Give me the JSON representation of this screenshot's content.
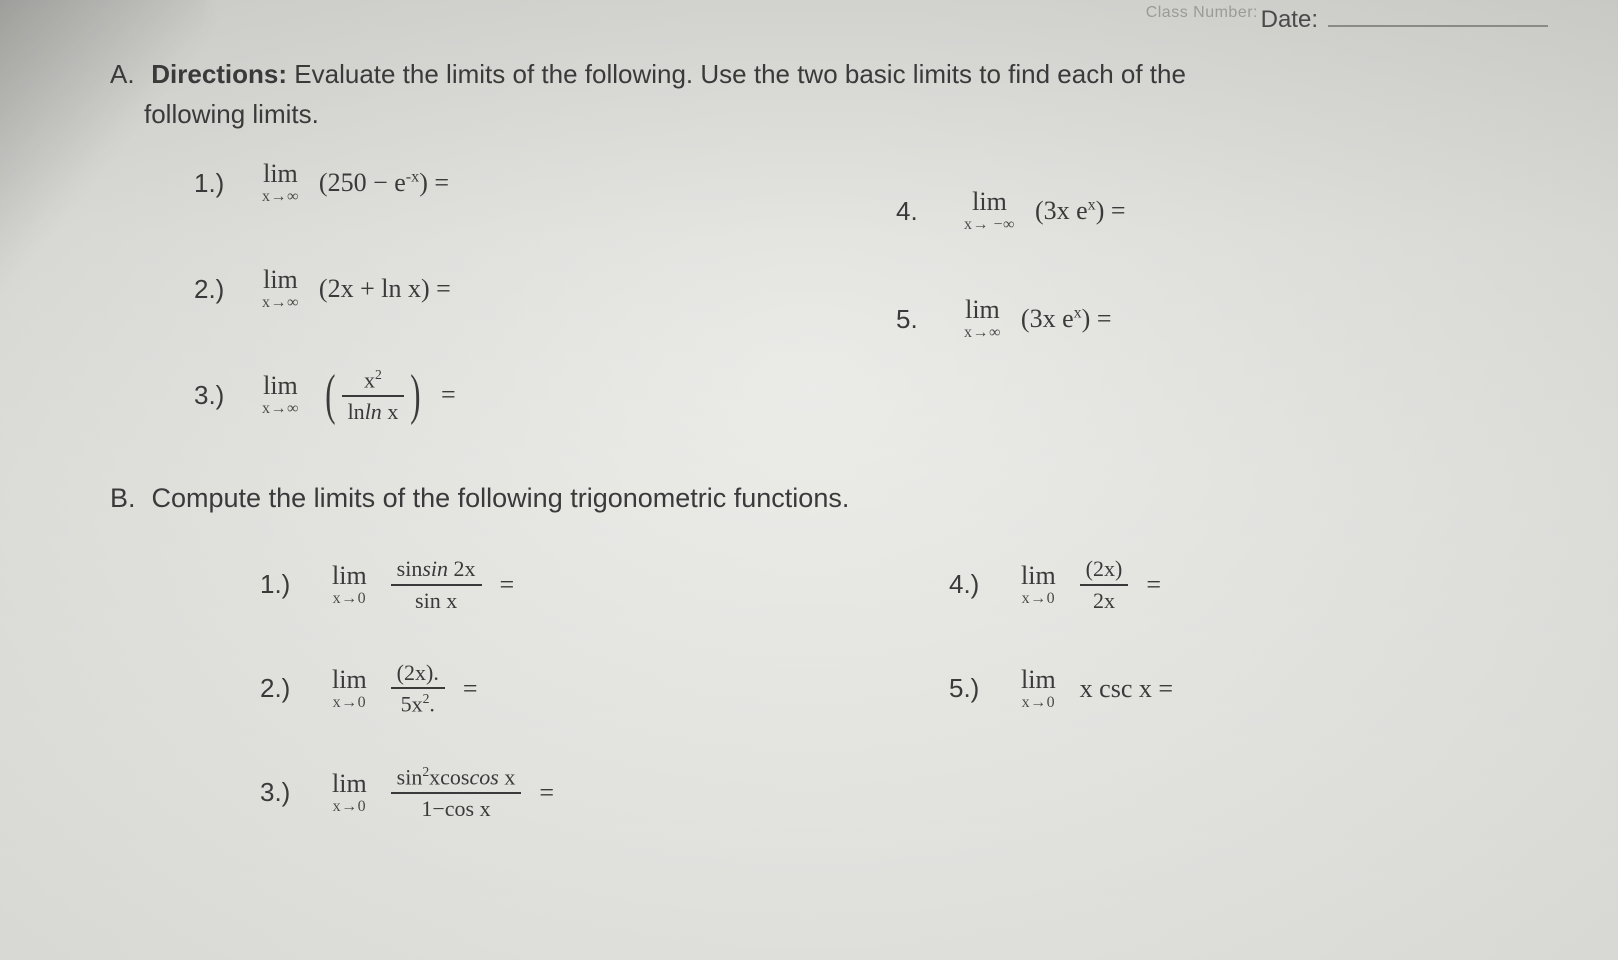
{
  "meta": {
    "class_number_ghost": "Class Number:",
    "date_label": "Date:"
  },
  "colors": {
    "text": "#3a3a3a",
    "muted": "#4a4a4a",
    "rule": "#8a8a86",
    "bg_top": "#d3d3cf",
    "bg_bottom": "#eaeae6"
  },
  "typography": {
    "body_family": "Arial, Helvetica, sans-serif",
    "math_family": "Georgia, 'Times New Roman', serif",
    "heading_size_pt": 20,
    "body_size_pt": 20,
    "subscript_scale": 0.62
  },
  "sectionA": {
    "letter": "A.",
    "bold_lead": "Directions:",
    "text_line1": " Evaluate the limits of the following. Use the two basic limits to find each of the",
    "text_line2": "following limits.",
    "left": [
      {
        "n": "1.)",
        "lim_top": "lim",
        "lim_bot": "x→∞",
        "expr_html": "(250 − e<sup>-x</sup>) ="
      },
      {
        "n": "2.)",
        "lim_top": "lim",
        "lim_bot": "x→∞",
        "expr_html": "(2x + ln x) ="
      },
      {
        "n": "3.)",
        "lim_top": "lim",
        "lim_bot": "x→∞",
        "paren_frac": {
          "num": "x<sup>2</sup>",
          "den": "ln<i>ln</i> x"
        },
        "tail": "="
      }
    ],
    "right": [
      {
        "n": "4.",
        "lim_top": "lim",
        "lim_bot": "x→ −∞",
        "expr_html": "(3x e<sup>x</sup>) ="
      },
      {
        "n": "5.",
        "lim_top": "lim",
        "lim_bot": "x→∞",
        "expr_html": "(3x e<sup>x</sup>) ="
      }
    ]
  },
  "sectionB": {
    "letter": "B.",
    "text": "Compute the limits of the following trigonometric functions.",
    "left": [
      {
        "n": "1.)",
        "lim_top": "lim",
        "lim_bot": "x→0",
        "frac": {
          "num": "sin<i>sin</i> 2x",
          "den": "sin x"
        },
        "tail": " ="
      },
      {
        "n": "2.)",
        "lim_top": "lim",
        "lim_bot": "x→0",
        "frac": {
          "num": "(2x).",
          "den": "5x<sup>2</sup>."
        },
        "tail": " ="
      },
      {
        "n": "3.)",
        "lim_top": "lim",
        "lim_bot": "x→0",
        "frac": {
          "num": "sin<sup>2</sup>xcos<i>cos</i> x",
          "den": "1−cos x"
        },
        "tail": " ="
      }
    ],
    "right": [
      {
        "n": "4.)",
        "lim_top": "lim",
        "lim_bot": "x→0",
        "frac": {
          "num": "(2x)",
          "den": "2x"
        },
        "tail": " ="
      },
      {
        "n": "5.)",
        "lim_top": "lim",
        "lim_bot": "x→0",
        "expr_html": "x csc x ="
      }
    ]
  }
}
